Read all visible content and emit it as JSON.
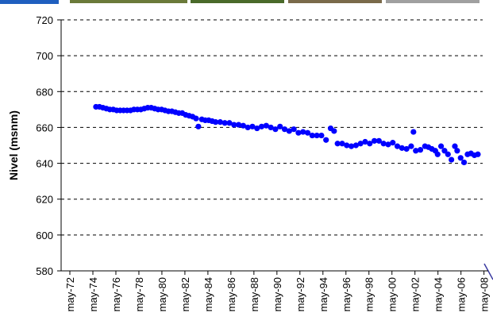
{
  "chart_data": {
    "type": "scatter",
    "y_label": "Nivel (msnm)",
    "x": [
      1974.6,
      1974.9,
      1975.2,
      1975.5,
      1975.8,
      1976.1,
      1976.4,
      1976.7,
      1977.0,
      1977.3,
      1977.6,
      1977.9,
      1978.2,
      1978.5,
      1978.8,
      1979.1,
      1979.4,
      1979.7,
      1980.0,
      1980.3,
      1980.6,
      1980.9,
      1981.2,
      1981.5,
      1981.8,
      1982.1,
      1982.4,
      1982.7,
      1983.0,
      1983.3,
      1983.5,
      1983.8,
      1984.1,
      1984.4,
      1984.7,
      1985.0,
      1985.4,
      1985.8,
      1986.2,
      1986.6,
      1987.0,
      1987.4,
      1987.8,
      1988.2,
      1988.6,
      1989.0,
      1989.4,
      1989.8,
      1990.2,
      1990.6,
      1991.0,
      1991.4,
      1991.8,
      1992.2,
      1992.6,
      1993.0,
      1993.4,
      1993.8,
      1994.2,
      1994.6,
      1995.0,
      1995.3,
      1995.6,
      1996.0,
      1996.4,
      1996.8,
      1997.2,
      1997.6,
      1998.0,
      1998.4,
      1998.8,
      1999.2,
      1999.6,
      2000.0,
      2000.4,
      2000.8,
      2001.2,
      2001.6,
      2002.0,
      2002.2,
      2002.4,
      2002.8,
      2003.2,
      2003.5,
      2003.8,
      2004.1,
      2004.3,
      2004.6,
      2004.9,
      2005.2,
      2005.5,
      2005.8,
      2006.0,
      2006.3,
      2006.6,
      2006.9,
      2007.2,
      2007.5,
      2007.8
    ],
    "series": [
      {
        "color": "#0000ff",
        "values": [
          671.5,
          671.5,
          671,
          670.5,
          670,
          670,
          669.5,
          669.5,
          669.5,
          669.5,
          669.5,
          670,
          670,
          670,
          670.5,
          671,
          671,
          670.5,
          670,
          670,
          669.5,
          669,
          669,
          668.5,
          668,
          668,
          667,
          666.5,
          666,
          665,
          660.5,
          664.5,
          664,
          664,
          663.5,
          663,
          663,
          662.5,
          662.5,
          661.5,
          661.5,
          661,
          660,
          660.5,
          659.5,
          660.5,
          661,
          660,
          659,
          660.5,
          659,
          658,
          659,
          657,
          657.5,
          657,
          655.5,
          655.5,
          655.5,
          653,
          659.5,
          658,
          651,
          651,
          650,
          649.5,
          650,
          651,
          652,
          651,
          652.5,
          652.5,
          651,
          650.5,
          651.5,
          649.5,
          648.5,
          648,
          649.5,
          657.5,
          647,
          647.5,
          649.5,
          649,
          648,
          647,
          645,
          649.5,
          647,
          645,
          642,
          649.5,
          647,
          643,
          640.5,
          645,
          645.5,
          644.5,
          645
        ]
      }
    ],
    "xlim": [
      1971.57,
      2008.7
    ],
    "xticks": [
      {
        "value": 1972.33,
        "label": "may-72"
      },
      {
        "value": 1974.33,
        "label": "may-74"
      },
      {
        "value": 1976.33,
        "label": "may-76"
      },
      {
        "value": 1978.33,
        "label": "may-78"
      },
      {
        "value": 1980.33,
        "label": "may-80"
      },
      {
        "value": 1982.33,
        "label": "may-82"
      },
      {
        "value": 1984.33,
        "label": "may-84"
      },
      {
        "value": 1986.33,
        "label": "may-86"
      },
      {
        "value": 1988.33,
        "label": "may-88"
      },
      {
        "value": 1990.33,
        "label": "may-90"
      },
      {
        "value": 1992.33,
        "label": "may-92"
      },
      {
        "value": 1994.33,
        "label": "may-94"
      },
      {
        "value": 1996.33,
        "label": "may-96"
      },
      {
        "value": 1998.33,
        "label": "may-98"
      },
      {
        "value": 2000.33,
        "label": "may-00"
      },
      {
        "value": 2002.33,
        "label": "may-02"
      },
      {
        "value": 2004.33,
        "label": "may-04"
      },
      {
        "value": 2006.33,
        "label": "may-06"
      },
      {
        "value": 2008.33,
        "label": "may-08"
      }
    ],
    "ylim": [
      580,
      720
    ],
    "yticks": [
      580,
      600,
      620,
      640,
      660,
      680,
      700,
      720
    ],
    "grid": true
  }
}
